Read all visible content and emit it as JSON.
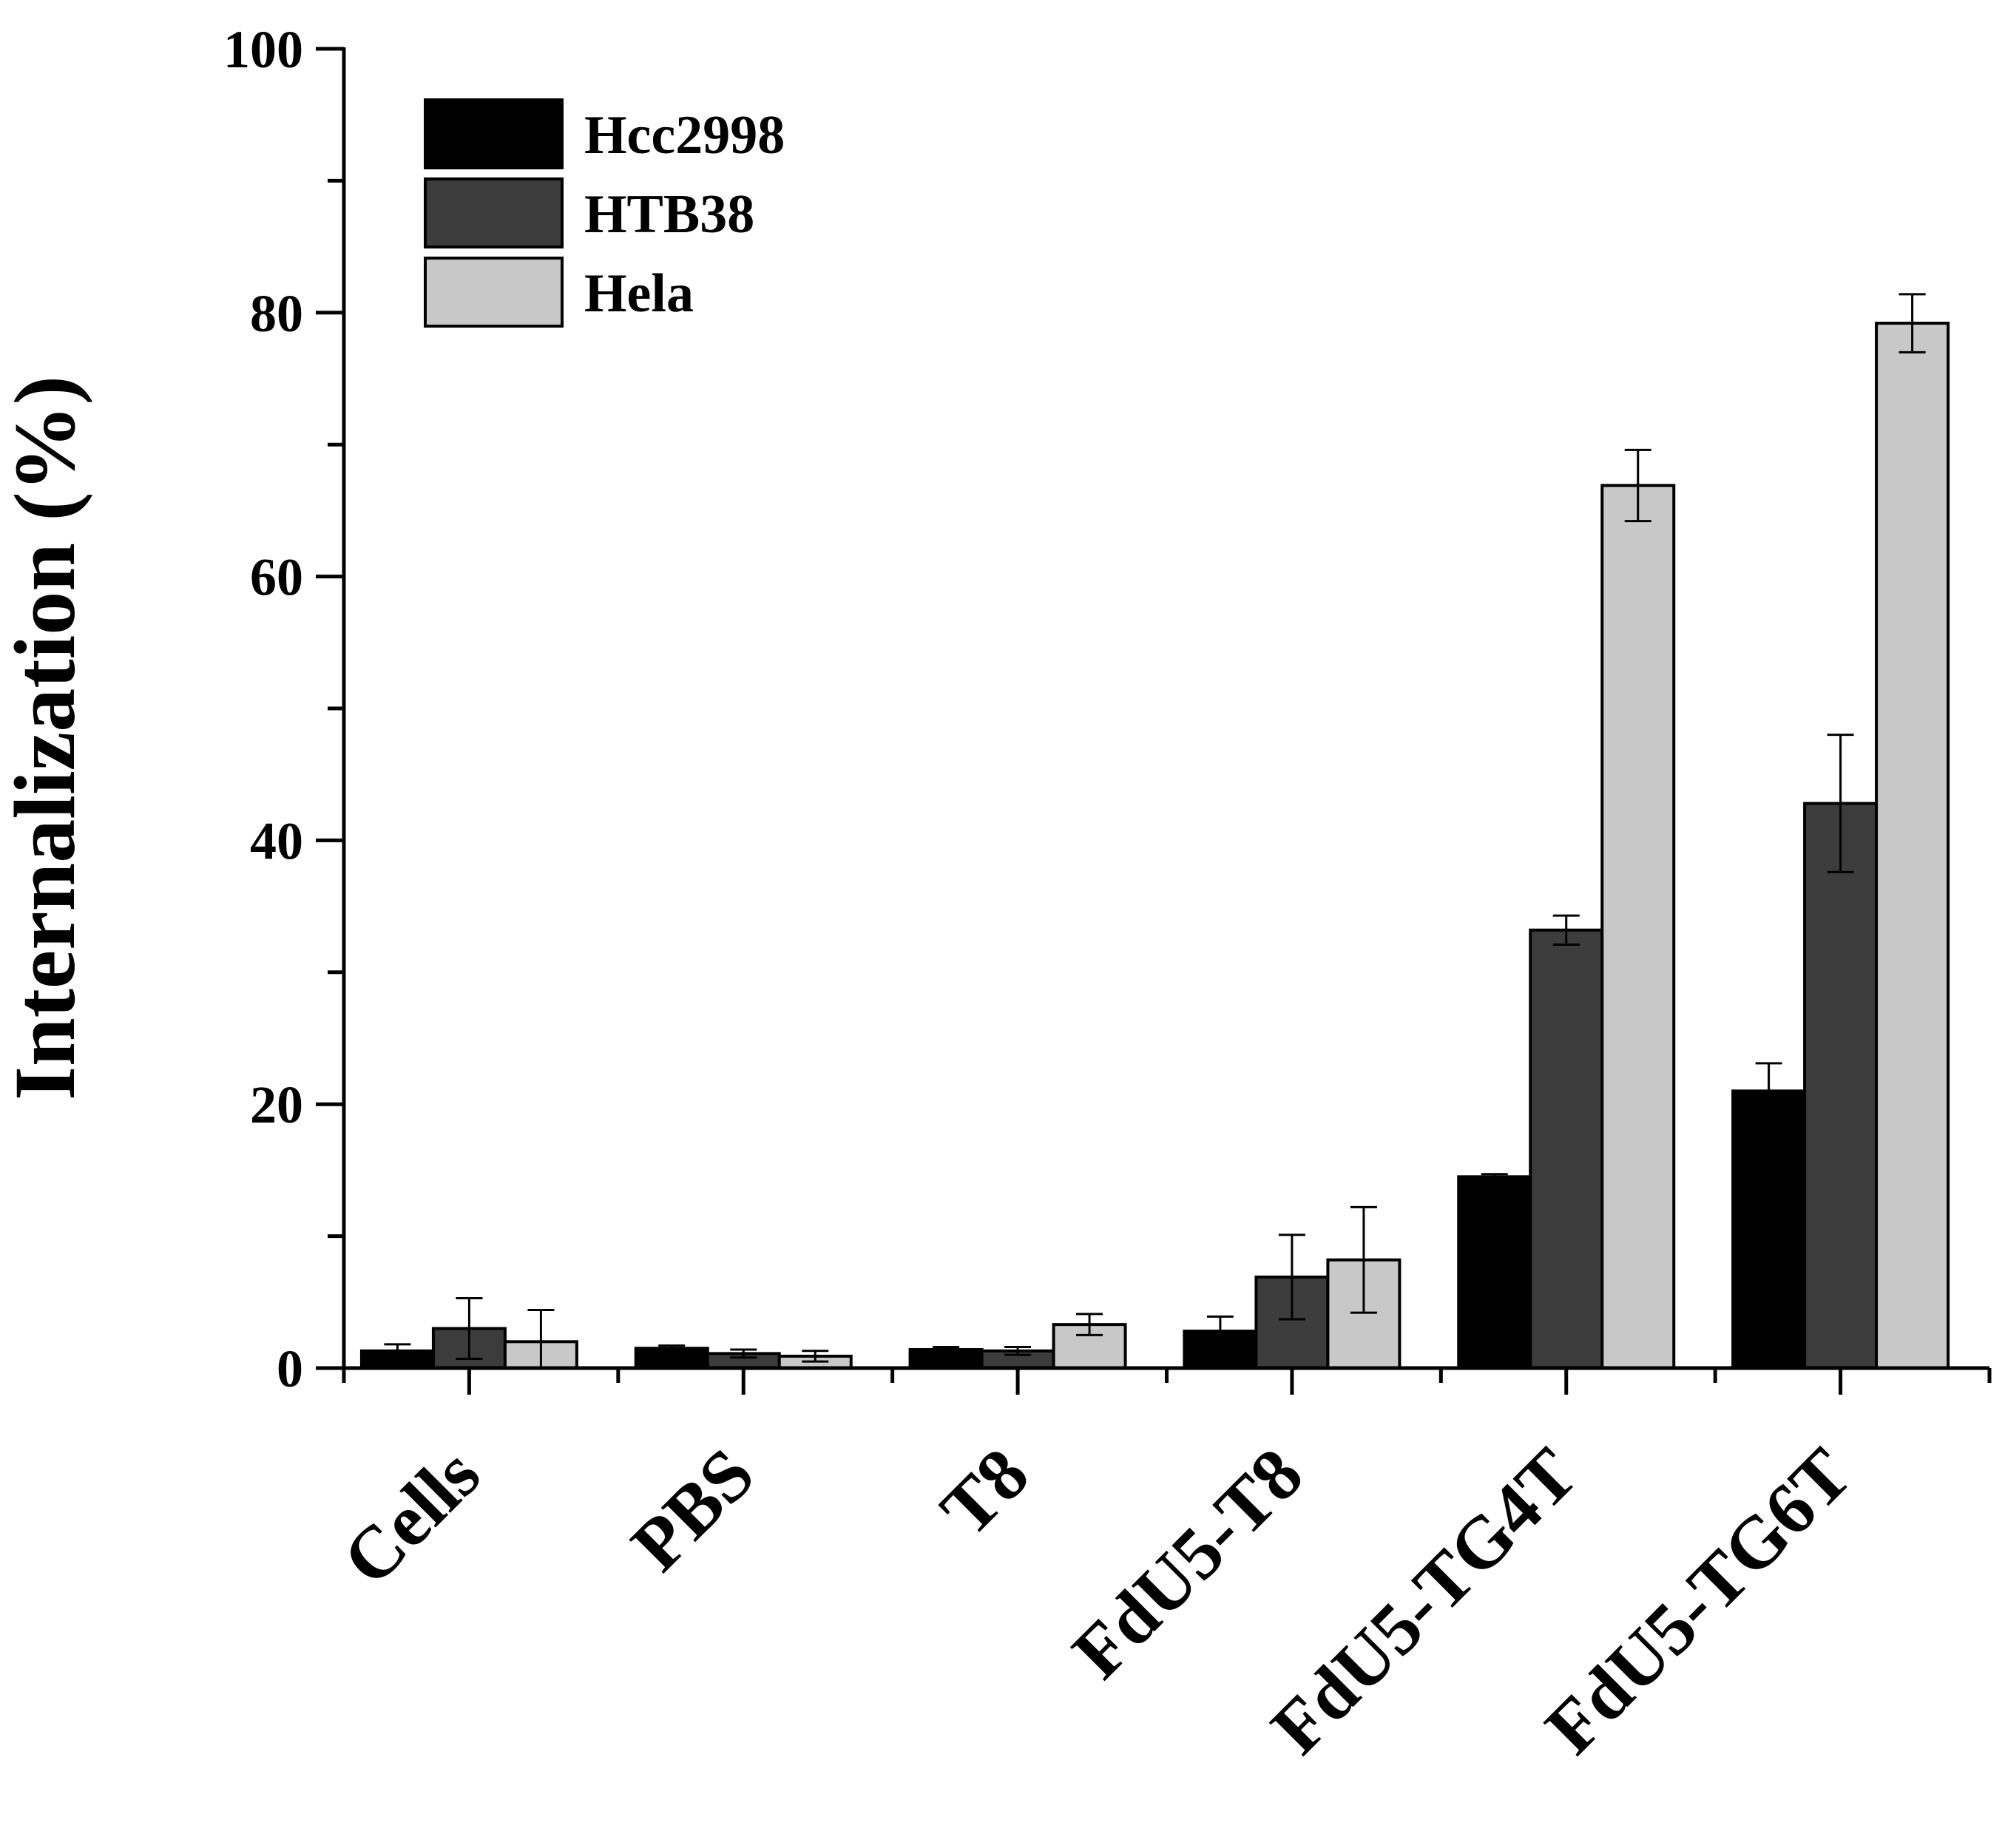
{
  "chart_data": {
    "type": "bar",
    "title": "",
    "xlabel": "",
    "ylabel": "Internalization (%)",
    "ylim": [
      0,
      100
    ],
    "yticks": [
      0,
      20,
      40,
      60,
      80,
      100
    ],
    "yminor_step": 10,
    "grid": false,
    "legend_position": "top-left",
    "categories": [
      "Cells",
      "PBS",
      "T8",
      "FdU5-T8",
      "FdU5-TG4T",
      "FdU5-TG6T"
    ],
    "series": [
      {
        "name": "Hcc2998",
        "color": "#000000",
        "values": [
          1.3,
          1.5,
          1.4,
          2.8,
          14.5,
          21.0
        ],
        "errors": [
          0.5,
          0.2,
          0.2,
          1.1,
          0.2,
          2.1
        ]
      },
      {
        "name": "HTB38",
        "color": "#3c3c3c",
        "values": [
          3.0,
          1.1,
          1.3,
          6.9,
          33.2,
          42.8
        ],
        "errors": [
          2.3,
          0.3,
          0.3,
          3.2,
          1.1,
          5.2
        ]
      },
      {
        "name": "Hela",
        "color": "#c8c8c8",
        "values": [
          2.0,
          0.9,
          3.3,
          8.2,
          66.9,
          79.2
        ],
        "errors": [
          2.4,
          0.4,
          0.8,
          4.0,
          2.7,
          2.2
        ]
      }
    ]
  }
}
